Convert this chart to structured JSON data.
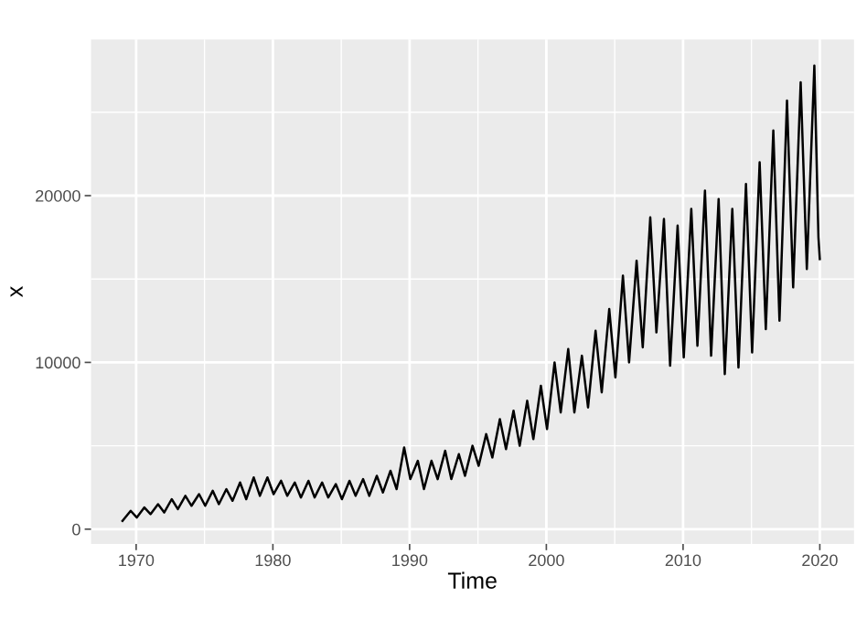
{
  "chart_data": {
    "type": "line",
    "xlabel": "Time",
    "ylabel": "x",
    "x": [
      1969.0,
      1969.6,
      1970.05,
      1970.6,
      1971.05,
      1971.6,
      1972.05,
      1972.6,
      1973.05,
      1973.6,
      1974.05,
      1974.6,
      1975.05,
      1975.6,
      1976.05,
      1976.6,
      1977.05,
      1977.6,
      1978.05,
      1978.6,
      1979.05,
      1979.6,
      1980.05,
      1980.6,
      1981.05,
      1981.6,
      1982.05,
      1982.6,
      1983.05,
      1983.6,
      1984.05,
      1984.6,
      1985.05,
      1985.6,
      1986.05,
      1986.6,
      1987.05,
      1987.6,
      1988.05,
      1988.6,
      1989.05,
      1989.6,
      1990.05,
      1990.6,
      1991.05,
      1991.6,
      1992.05,
      1992.6,
      1993.05,
      1993.6,
      1994.05,
      1994.6,
      1995.05,
      1995.6,
      1996.05,
      1996.6,
      1997.05,
      1997.6,
      1998.05,
      1998.6,
      1999.05,
      1999.6,
      2000.05,
      2000.6,
      2001.05,
      2001.6,
      2002.05,
      2002.6,
      2003.05,
      2003.6,
      2004.05,
      2004.6,
      2005.05,
      2005.6,
      2006.05,
      2006.6,
      2007.05,
      2007.6,
      2008.05,
      2008.6,
      2009.05,
      2009.6,
      2010.05,
      2010.6,
      2011.05,
      2011.6,
      2012.05,
      2012.6,
      2013.05,
      2013.6,
      2014.05,
      2014.6,
      2015.05,
      2015.6,
      2016.05,
      2016.6,
      2017.05,
      2017.6,
      2018.05,
      2018.6,
      2019.05,
      2019.6,
      2019.9,
      2020.0
    ],
    "series": [
      {
        "color": "#000000",
        "values": [
          500,
          1100,
          700,
          1300,
          900,
          1500,
          1000,
          1800,
          1200,
          2000,
          1400,
          2100,
          1400,
          2300,
          1500,
          2400,
          1700,
          2800,
          1800,
          3100,
          2000,
          3100,
          2100,
          2900,
          2000,
          2800,
          1900,
          2900,
          1900,
          2800,
          1900,
          2700,
          1800,
          2900,
          2000,
          3000,
          2000,
          3200,
          2200,
          3500,
          2400,
          4900,
          3000,
          4100,
          2400,
          4100,
          3000,
          4700,
          3000,
          4500,
          3200,
          5000,
          3800,
          5700,
          4300,
          6600,
          4800,
          7100,
          5000,
          7700,
          5400,
          8600,
          6000,
          10000,
          7000,
          10800,
          7000,
          10400,
          7300,
          11900,
          8200,
          13200,
          9100,
          15200,
          10000,
          16100,
          10900,
          18700,
          11800,
          18600,
          9800,
          18200,
          10300,
          19200,
          11000,
          20300,
          10400,
          19800,
          9300,
          19200,
          9700,
          20700,
          10600,
          22000,
          12000,
          23900,
          12500,
          25700,
          14500,
          26800,
          15600,
          27800,
          17500,
          16200
        ]
      }
    ],
    "xlim": [
      1966.7,
      2022.5
    ],
    "xticks": [
      1970,
      1980,
      1990,
      2000,
      2010,
      2020
    ],
    "ylim": [
      -880,
      29360
    ],
    "yticks": [
      0,
      10000,
      20000
    ],
    "grid": true,
    "marker": "none",
    "line_style": "solid"
  }
}
